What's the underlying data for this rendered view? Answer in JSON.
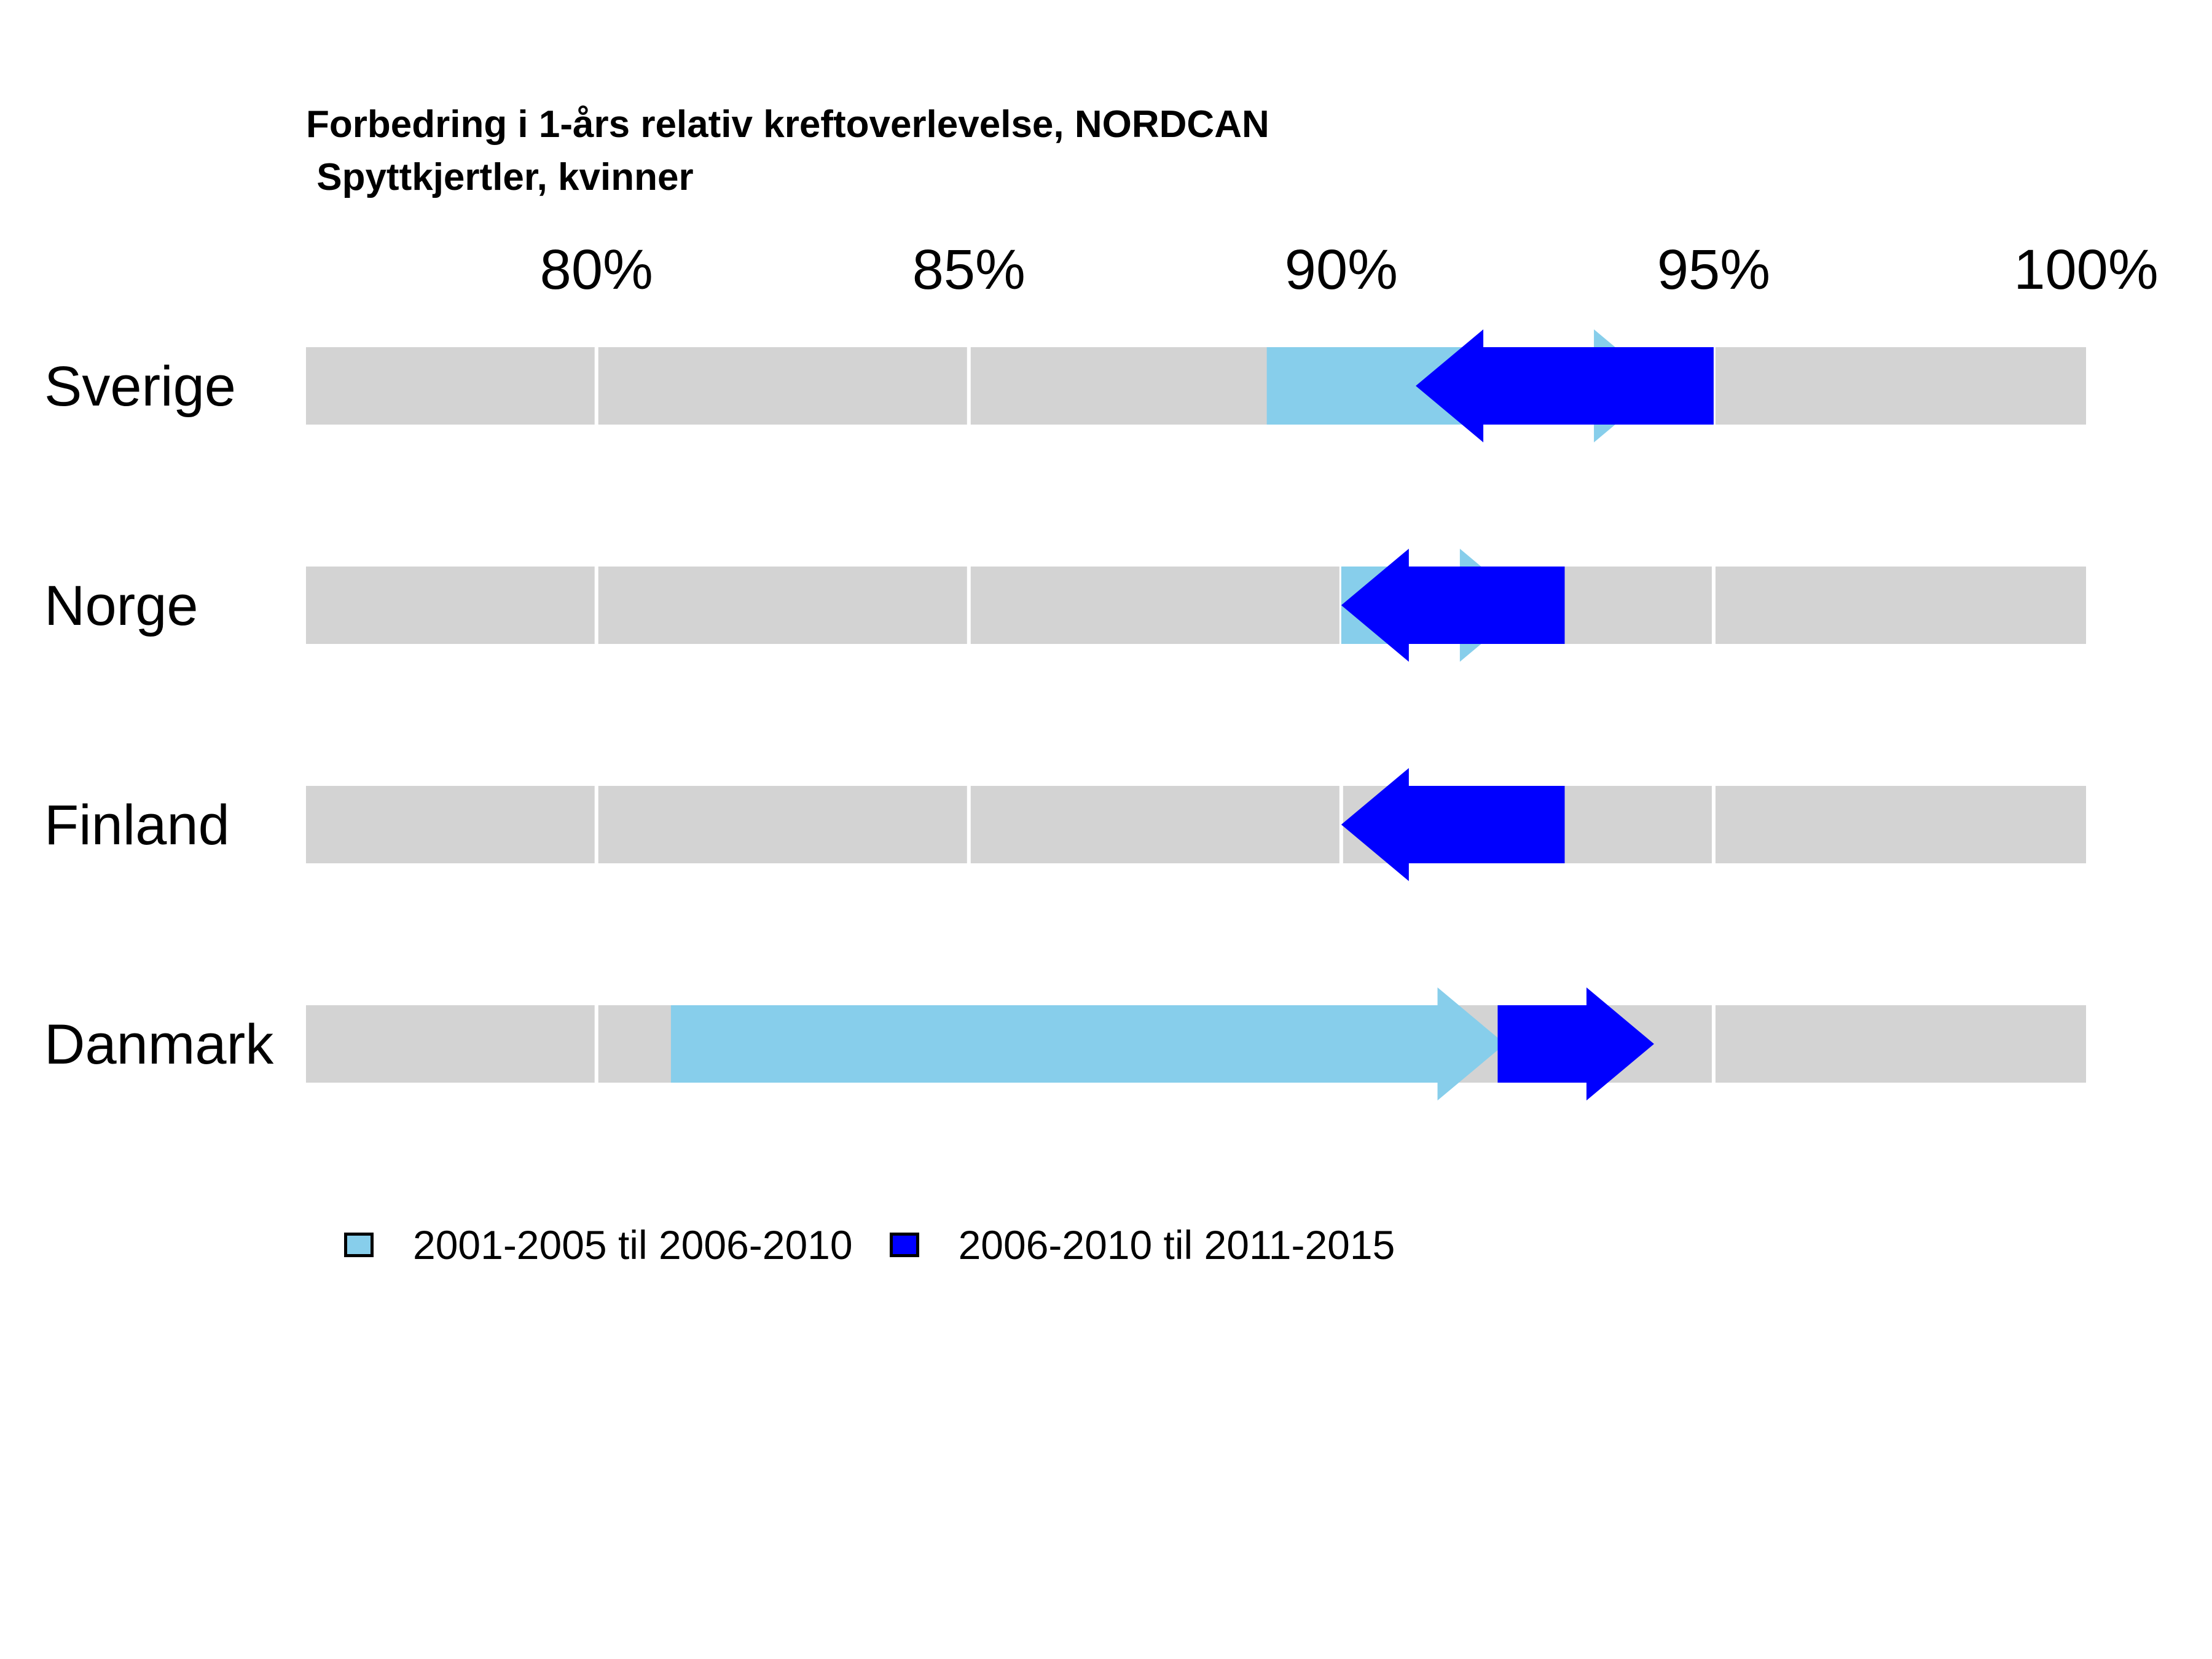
{
  "chart_data": {
    "type": "arrow-range",
    "title": "Forbedring i 1-års relativ kreftoverlevelse, NORDCAN",
    "subtitle": " Spyttkjertler, kvinner",
    "xlim": [
      76.1,
      100
    ],
    "x_ticks": [
      80,
      85,
      90,
      95,
      100
    ],
    "x_tick_labels": [
      "80%",
      "85%",
      "90%",
      "95%",
      "100%"
    ],
    "grid": true,
    "legend_position": "bottom",
    "categories": [
      "Sverige",
      "Norge",
      "Finland",
      "Danmark"
    ],
    "series": [
      {
        "name": "2001-2005 til 2006-2010",
        "color": "#87CEEB",
        "start": [
          89.0,
          90.0,
          92.5,
          81.0
        ],
        "end": [
          94.3,
          92.5,
          92.5,
          92.2
        ]
      },
      {
        "name": "2006-2010 til 2011-2015",
        "color": "#0000FF",
        "start": [
          95.0,
          93.0,
          93.0,
          92.1
        ],
        "end": [
          91.0,
          90.0,
          90.0,
          94.2
        ]
      }
    ]
  },
  "colors": {
    "track": "#D3D3D3",
    "grid": "#FFFFFF"
  }
}
